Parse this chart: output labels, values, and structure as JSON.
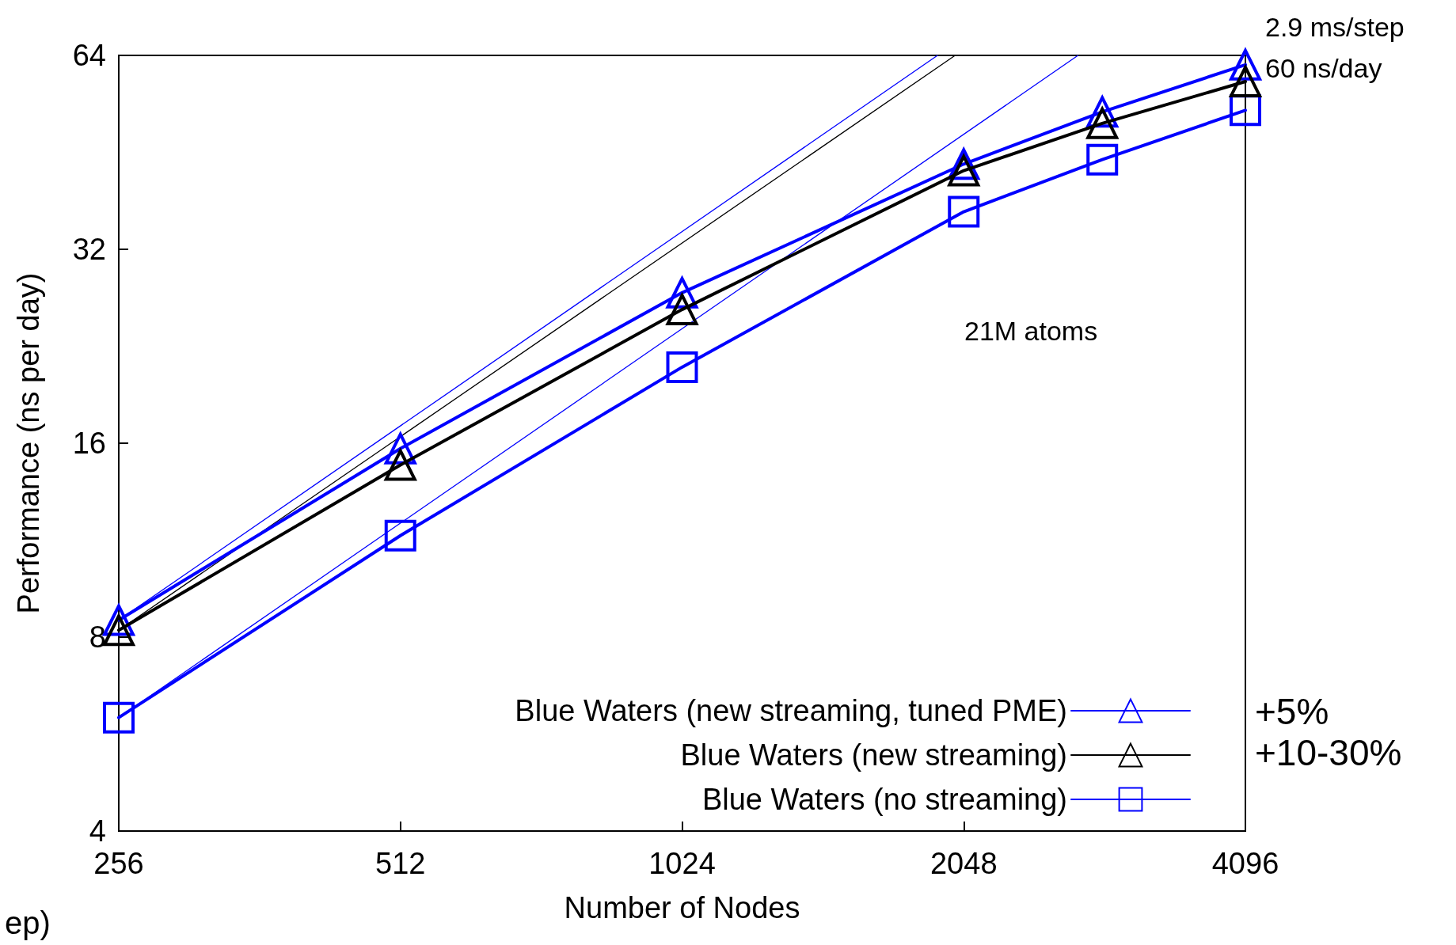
{
  "chart_data": {
    "type": "line",
    "xlabel": "Number of Nodes",
    "ylabel": "Performance (ns per day)",
    "log": "xy",
    "xlim": [
      256,
      4096
    ],
    "xticks": [
      256,
      512,
      1024,
      2048,
      4096
    ],
    "ylim": [
      4,
      64
    ],
    "yticks": [
      4,
      8,
      16,
      32,
      64
    ],
    "grid": false,
    "legend": "bottom right",
    "line_style": "solid",
    "annotations": [
      "2.9 ms/step\n60 ns/day",
      "21M atoms",
      "+5%",
      "+10-30%",
      "ep)"
    ],
    "series": [
      {
        "name": "Blue Waters (new streaming, tuned PME)",
        "color": "#0000ff",
        "marker": "triangle",
        "x": [
          256,
          512,
          1024,
          2048,
          2880,
          4096
        ],
        "values": [
          8.5,
          15.7,
          27.4,
          43.4,
          52.3,
          61.9
        ]
      },
      {
        "name": "Blue Waters (new streaming)",
        "color": "#000000",
        "marker": "triangle",
        "x": [
          256,
          512,
          1024,
          2048,
          2880,
          4096
        ],
        "values": [
          8.2,
          14.8,
          25.8,
          42.4,
          50.2,
          58.3
        ]
      },
      {
        "name": "Blue Waters (no streaming)",
        "color": "#0000ff",
        "marker": "square",
        "x": [
          256,
          512,
          1024,
          2048,
          2880,
          4096
        ],
        "values": [
          6.0,
          11.5,
          21.0,
          36.6,
          44.1,
          52.6
        ]
      },
      {
        "color": "#0000ff",
        "marker": "none",
        "x": [
          256,
          1920
        ],
        "values": [
          8.5,
          64
        ]
      },
      {
        "color": "#000000",
        "marker": "none",
        "x": [
          256,
          2005
        ],
        "values": [
          8.2,
          64
        ]
      },
      {
        "color": "#0000ff",
        "marker": "none",
        "x": [
          256,
          2713
        ],
        "values": [
          6.0,
          64
        ]
      }
    ]
  }
}
